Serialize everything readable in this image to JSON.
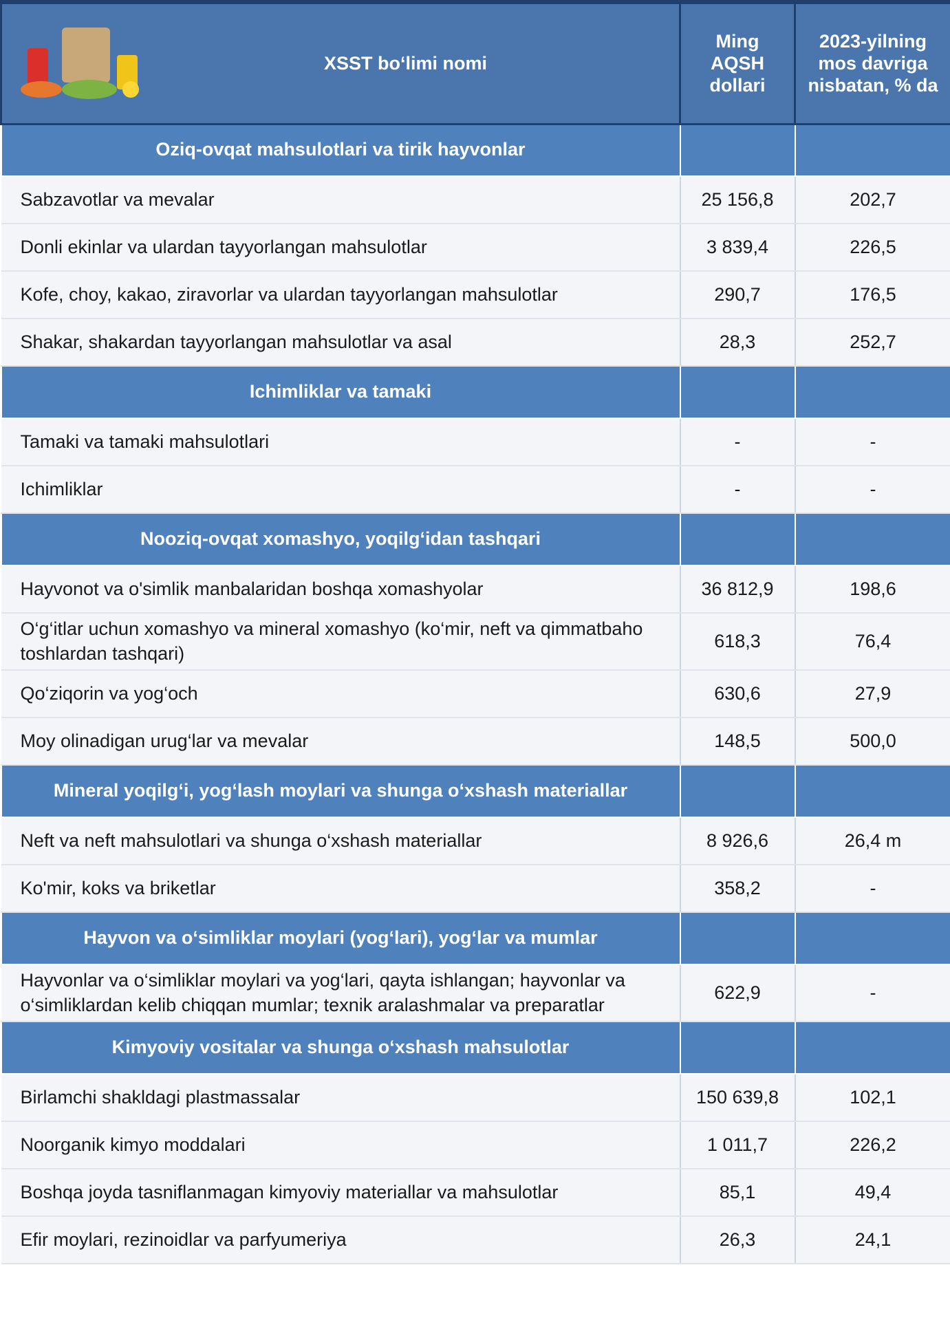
{
  "header": {
    "title": "XSST bo‘limi nomi",
    "col_value": "Ming AQSH dollari",
    "col_change": "2023-yilning mos davriga nisbatan, % da"
  },
  "sections": [
    {
      "title": "Oziq-ovqat mahsulotlari va tirik hayvonlar",
      "rows": [
        [
          "Sabzavotlar va mevalar",
          "25 156,8",
          "202,7"
        ],
        [
          "Donli ekinlar va ulardan tayyorlangan mahsulotlar",
          "3 839,4",
          "226,5"
        ],
        [
          "Kofe, choy, kakao, ziravorlar va ulardan tayyorlangan mahsulotlar",
          "290,7",
          "176,5"
        ],
        [
          "Shakar, shakardan  tayyorlangan mahsulotlar va asal",
          "28,3",
          "252,7"
        ]
      ]
    },
    {
      "title": "Ichimliklar va tamaki",
      "rows": [
        [
          "Tamaki va tamaki mahsulotlari",
          "-",
          "-"
        ],
        [
          "Ichimliklar",
          "-",
          "-"
        ]
      ]
    },
    {
      "title": "Nooziq-ovqat xomashyo, yoqilg‘idan tashqari",
      "rows": [
        [
          "Hayvonot va o'simlik manbalaridan boshqa xomashyolar",
          "36 812,9",
          "198,6"
        ],
        [
          "O‘g‘itlar uchun xomashyo va mineral xomashyo (ko‘mir, neft va qimmatbaho toshlardan tashqari)",
          "618,3",
          "76,4"
        ],
        [
          "Qo‘ziqorin va yog‘och",
          "630,6",
          "27,9"
        ],
        [
          "Moy olinadigan urug‘lar va mevalar",
          "148,5",
          "500,0"
        ]
      ]
    },
    {
      "title": "Mineral yoqilg‘i, yog‘lash moylari va shunga o‘xshash materiallar",
      "rows": [
        [
          "Neft va neft mahsulotlari va shunga o‘xshash materiallar",
          "8 926,6",
          "26,4 m"
        ],
        [
          "Ko'mir, koks va briketlar",
          "358,2",
          "-"
        ]
      ]
    },
    {
      "title": "Hayvon va o‘simliklar moylari (yog‘lari), yog‘lar va mumlar",
      "rows": [
        [
          "Hayvonlar va o‘simliklar moylari va yog‘lari, qayta ishlangan; hayvonlar va o‘simliklardan kelib chiqqan mumlar; texnik aralashmalar va preparatlar",
          "622,9",
          "-"
        ]
      ]
    },
    {
      "title": "Kimyoviy vositalar va shunga o‘xshash mahsulotlar",
      "rows": [
        [
          "Birlamchi shakldagi plastmassalar",
          "150 639,8",
          "102,1"
        ],
        [
          "Noorganik kimyo moddalari",
          "1 011,7",
          "226,2"
        ],
        [
          "Boshqa joyda tasniflanmagan kimyoviy materiallar va mahsulotlar",
          "85,1",
          "49,4"
        ],
        [
          "Efir moylari, rezinoidlar va parfyumeriya",
          "26,3",
          "24,1"
        ]
      ]
    }
  ]
}
